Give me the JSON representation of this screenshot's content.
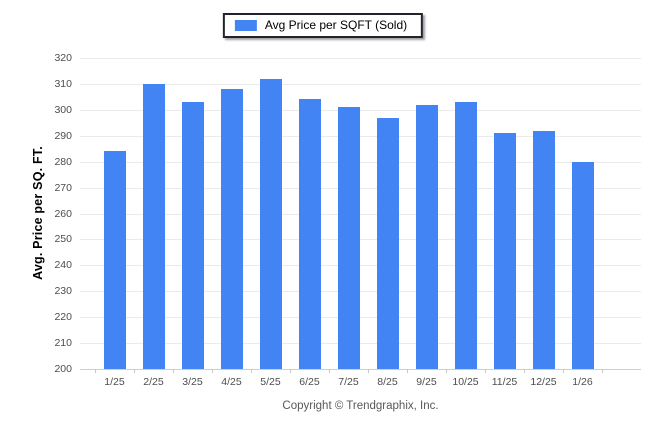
{
  "legend": {
    "label": "Avg Price per SQFT (Sold)",
    "swatch_color": "#4284f4"
  },
  "footer": {
    "copyright": "Copyright © Trendgraphix, Inc."
  },
  "colors": {
    "bar": "#4284f4",
    "gridline": "#ebebeb",
    "axis_line": "#cfcfcf",
    "tick_label": "#4d4d4d",
    "legend_border": "#23232d",
    "copyright_text": "#595959"
  },
  "chart_data": {
    "type": "bar",
    "title": "",
    "xlabel": "",
    "ylabel": "Avg. Price per SQ. FT.",
    "categories": [
      "1/25",
      "2/25",
      "3/25",
      "4/25",
      "5/25",
      "6/25",
      "7/25",
      "8/25",
      "9/25",
      "10/25",
      "11/25",
      "12/25",
      "1/26"
    ],
    "series": [
      {
        "name": "Avg Price per SQFT (Sold)",
        "color": "#4284f4",
        "values": [
          284,
          310,
          303,
          308,
          312,
          304,
          301,
          297,
          302,
          303,
          291,
          292,
          280
        ]
      }
    ],
    "ylim": [
      200,
      320
    ],
    "ytick_step": 10,
    "grid": true,
    "legend_position": "top"
  }
}
